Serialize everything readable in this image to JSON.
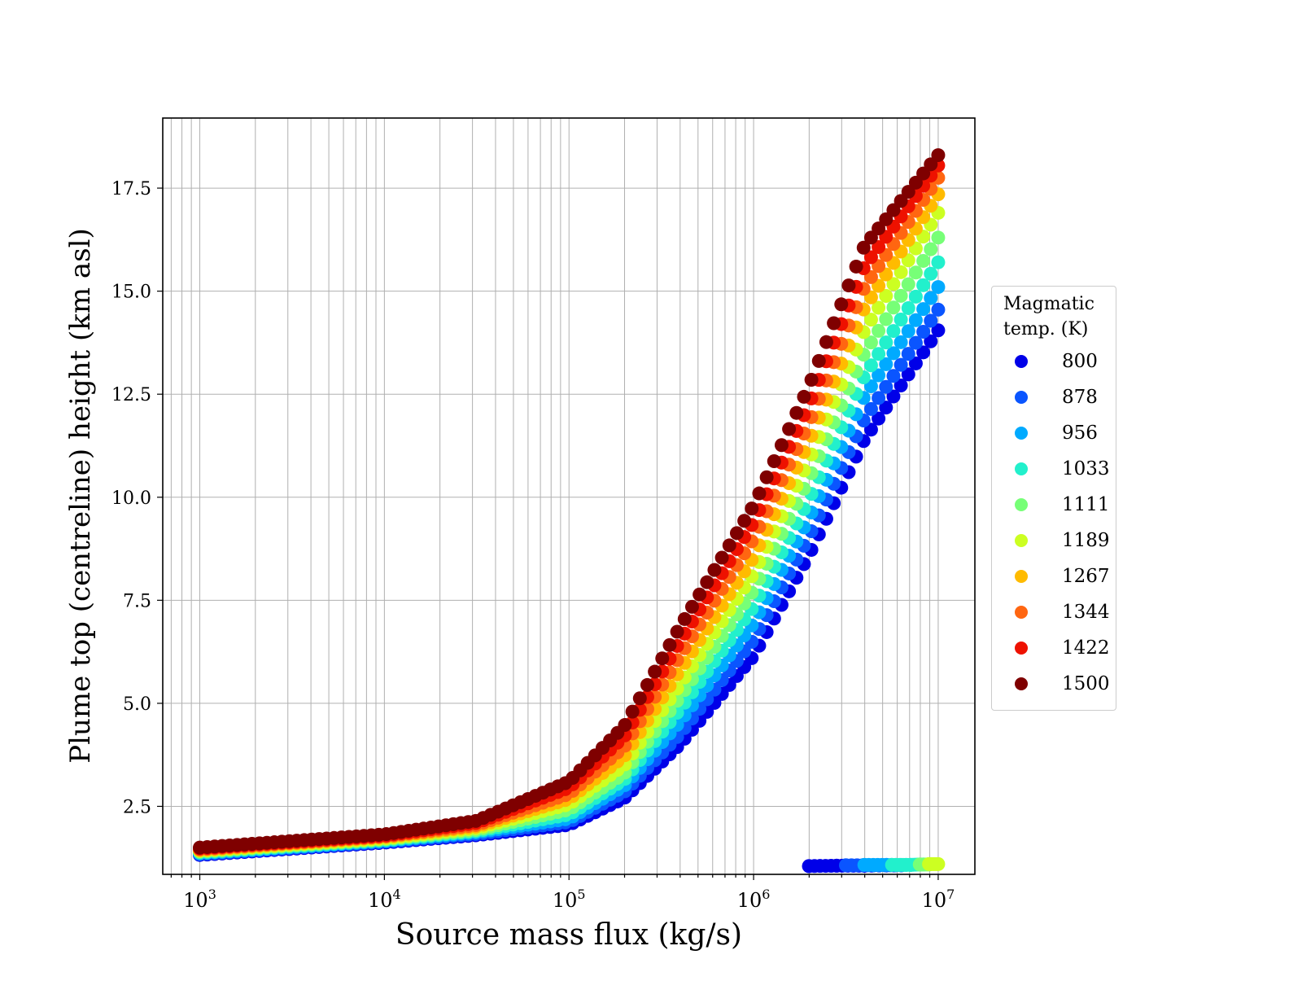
{
  "chart_data": {
    "type": "scatter",
    "xlabel": "Source mass flux (kg/s)",
    "ylabel": "Plume top (centreline) height (km asl)",
    "xscale": "log",
    "xlim": [
      630,
      15800000
    ],
    "ylim": [
      0.85,
      19.2
    ],
    "yticks": [
      2.5,
      5.0,
      7.5,
      10.0,
      12.5,
      15.0,
      17.5
    ],
    "ytick_labels": [
      "2.5",
      "5.0",
      "7.5",
      "10.0",
      "12.5",
      "15.0",
      "17.5"
    ],
    "xticks": [
      1000,
      10000,
      100000,
      1000000,
      10000000
    ],
    "xtick_exponents": [
      "3",
      "4",
      "5",
      "6",
      "7"
    ],
    "xtick_base": "10",
    "grid": true,
    "legend": {
      "title": "Magmatic\ntemp. (K)",
      "placement": "outside right"
    },
    "series": [
      {
        "name": "800",
        "color": "#0000e8",
        "x_range": [
          1000,
          10000000
        ],
        "points": [
          [
            3,
            1.32
          ],
          [
            4,
            1.62
          ],
          [
            4.5,
            1.8
          ],
          [
            5,
            2.05
          ],
          [
            5.3,
            2.7
          ],
          [
            5.6,
            4.0
          ],
          [
            6,
            6.15
          ],
          [
            6.3,
            8.6
          ],
          [
            6.6,
            11.4
          ],
          [
            7,
            14.05
          ]
        ],
        "break_points": [
          [
            6.3,
            1.05
          ],
          [
            6.45,
            1.06
          ],
          [
            6.6,
            1.06
          ],
          [
            6.8,
            1.07
          ]
        ]
      },
      {
        "name": "878",
        "color": "#0a55ff",
        "x_range": [
          1000,
          10000000
        ],
        "points": [
          [
            3,
            1.34
          ],
          [
            4,
            1.64
          ],
          [
            4.5,
            1.83
          ],
          [
            5,
            2.12
          ],
          [
            5.3,
            2.85
          ],
          [
            5.6,
            4.25
          ],
          [
            6,
            6.55
          ],
          [
            6.3,
            9.05
          ],
          [
            6.6,
            11.9
          ],
          [
            7,
            14.55
          ]
        ],
        "break_points": [
          [
            6.5,
            1.07
          ],
          [
            6.65,
            1.07
          ],
          [
            6.8,
            1.07
          ]
        ]
      },
      {
        "name": "956",
        "color": "#00aaff",
        "x_range": [
          1000,
          10000000
        ],
        "points": [
          [
            3,
            1.36
          ],
          [
            4,
            1.66
          ],
          [
            4.5,
            1.87
          ],
          [
            5,
            2.2
          ],
          [
            5.3,
            3.0
          ],
          [
            5.6,
            4.55
          ],
          [
            6,
            6.95
          ],
          [
            6.3,
            9.5
          ],
          [
            6.6,
            12.45
          ],
          [
            7,
            15.1
          ]
        ],
        "break_points": [
          [
            6.6,
            1.08
          ],
          [
            6.72,
            1.08
          ],
          [
            6.85,
            1.08
          ]
        ]
      },
      {
        "name": "1033",
        "color": "#22f0cc",
        "x_range": [
          1000,
          10000000
        ],
        "points": [
          [
            3,
            1.38
          ],
          [
            4,
            1.68
          ],
          [
            4.5,
            1.9
          ],
          [
            5,
            2.3
          ],
          [
            5.3,
            3.15
          ],
          [
            5.6,
            4.85
          ],
          [
            6,
            7.35
          ],
          [
            6.3,
            9.95
          ],
          [
            6.6,
            12.95
          ],
          [
            7,
            15.7
          ]
        ],
        "break_points": [
          [
            6.75,
            1.08
          ],
          [
            6.85,
            1.08
          ],
          [
            6.92,
            1.09
          ]
        ]
      },
      {
        "name": "1111",
        "color": "#77ff77",
        "x_range": [
          1000,
          10000000
        ],
        "points": [
          [
            3,
            1.4
          ],
          [
            4,
            1.7
          ],
          [
            4.5,
            1.93
          ],
          [
            5,
            2.42
          ],
          [
            5.3,
            3.3
          ],
          [
            5.6,
            5.15
          ],
          [
            6,
            7.75
          ],
          [
            6.3,
            10.45
          ],
          [
            6.6,
            13.5
          ],
          [
            7,
            16.3
          ]
        ],
        "break_points": [
          [
            6.9,
            1.09
          ],
          [
            6.95,
            1.09
          ]
        ]
      },
      {
        "name": "1189",
        "color": "#ccff22",
        "x_range": [
          1000,
          10000000
        ],
        "points": [
          [
            3,
            1.42
          ],
          [
            4,
            1.72
          ],
          [
            4.5,
            1.97
          ],
          [
            5,
            2.55
          ],
          [
            5.3,
            3.5
          ],
          [
            5.6,
            5.45
          ],
          [
            6,
            8.15
          ],
          [
            6.3,
            10.9
          ],
          [
            6.6,
            14.05
          ],
          [
            7,
            16.9
          ]
        ],
        "break_points": [
          [
            6.95,
            1.1
          ],
          [
            7.0,
            1.1
          ]
        ]
      },
      {
        "name": "1267",
        "color": "#ffbb00",
        "x_range": [
          1000,
          10000000
        ],
        "points": [
          [
            3,
            1.44
          ],
          [
            4,
            1.75
          ],
          [
            4.5,
            2.01
          ],
          [
            5,
            2.68
          ],
          [
            5.3,
            3.72
          ],
          [
            5.6,
            5.8
          ],
          [
            6,
            8.55
          ],
          [
            6.3,
            11.35
          ],
          [
            6.6,
            14.6
          ],
          [
            7,
            17.35
          ]
        ]
      },
      {
        "name": "1344",
        "color": "#ff6611",
        "x_range": [
          1000,
          10000000
        ],
        "points": [
          [
            3,
            1.46
          ],
          [
            4,
            1.77
          ],
          [
            4.5,
            2.05
          ],
          [
            5,
            2.8
          ],
          [
            5.3,
            3.95
          ],
          [
            5.6,
            6.15
          ],
          [
            6,
            9.0
          ],
          [
            6.3,
            11.8
          ],
          [
            6.6,
            15.1
          ],
          [
            7,
            17.75
          ]
        ]
      },
      {
        "name": "1422",
        "color": "#ee1100",
        "x_range": [
          1000,
          10000000
        ],
        "points": [
          [
            3,
            1.48
          ],
          [
            4,
            1.79
          ],
          [
            4.5,
            2.1
          ],
          [
            5,
            2.95
          ],
          [
            5.3,
            4.2
          ],
          [
            5.6,
            6.5
          ],
          [
            6,
            9.4
          ],
          [
            6.3,
            12.25
          ],
          [
            6.6,
            15.6
          ],
          [
            7,
            18.05
          ]
        ]
      },
      {
        "name": "1500",
        "color": "#7f0000",
        "x_range": [
          1000,
          10000000
        ],
        "points": [
          [
            3,
            1.5
          ],
          [
            4,
            1.82
          ],
          [
            4.5,
            2.15
          ],
          [
            5,
            3.1
          ],
          [
            5.3,
            4.45
          ],
          [
            5.6,
            6.85
          ],
          [
            6,
            9.8
          ],
          [
            6.3,
            12.7
          ],
          [
            6.6,
            16.1
          ],
          [
            7,
            18.3
          ]
        ]
      }
    ]
  }
}
